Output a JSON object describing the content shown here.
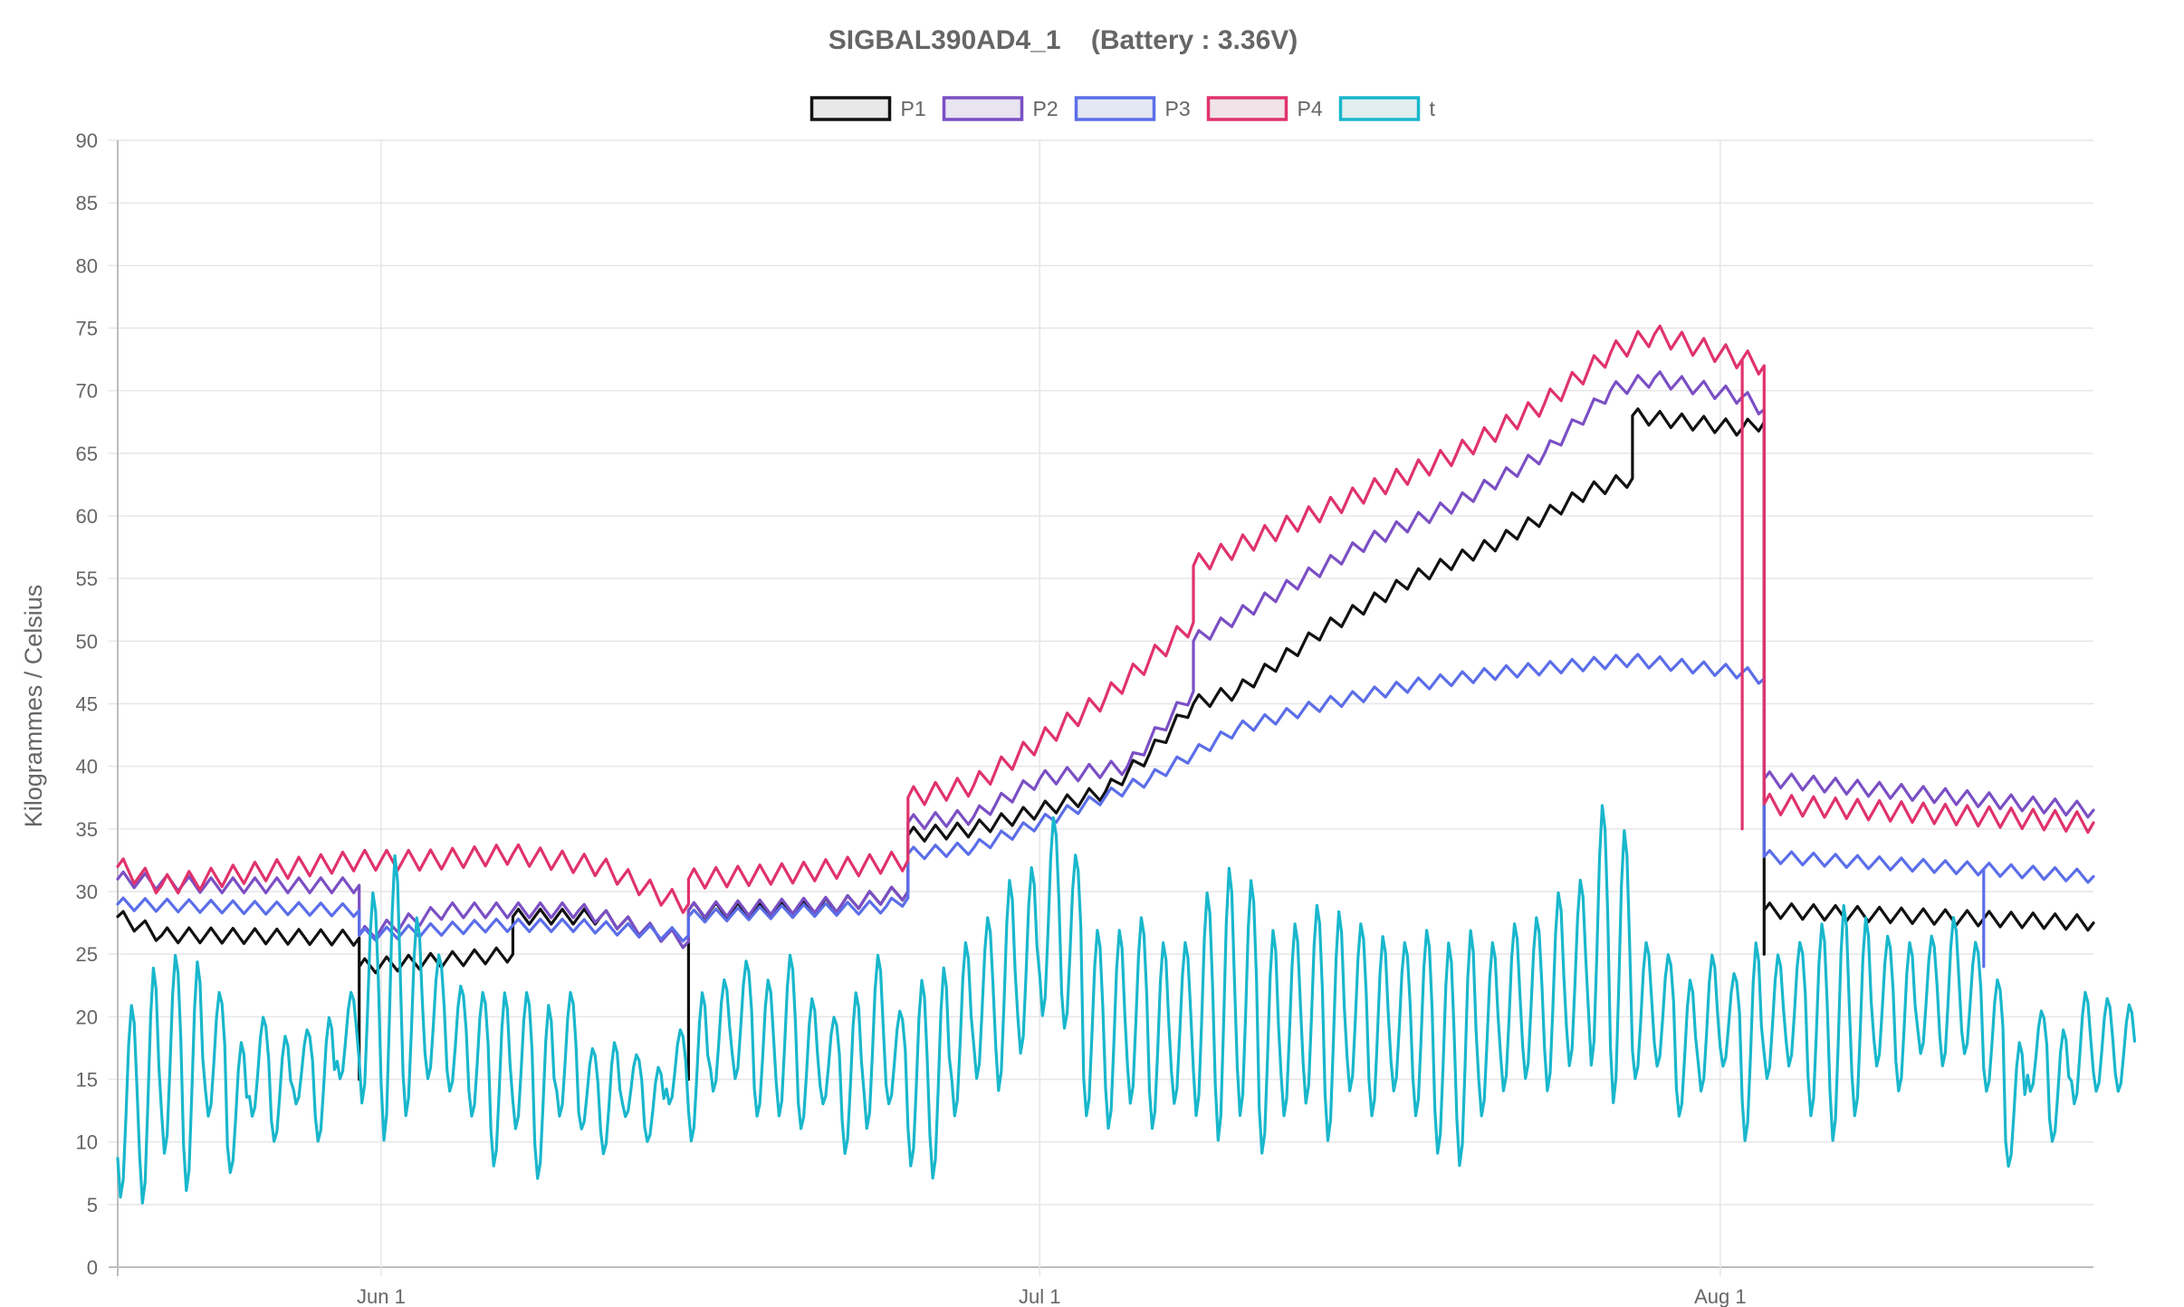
{
  "chart_data": {
    "type": "line",
    "title": "SIGBAL390AD4_1    (Battery : 3.36V)",
    "ylabel": "Kilogrammes  / Celsius",
    "xlabel": "",
    "ylim": [
      0,
      90
    ],
    "yticks": [
      0,
      5,
      10,
      15,
      20,
      25,
      30,
      35,
      40,
      45,
      50,
      55,
      60,
      65,
      70,
      75,
      80,
      85,
      90
    ],
    "xlim": [
      "2019-05-20",
      "2019-08-18"
    ],
    "xticks": [
      {
        "date": "2019-06-01",
        "label": "Jun 1"
      },
      {
        "date": "2019-07-01",
        "label": "Jul 1"
      },
      {
        "date": "2019-08-01",
        "label": "Aug 1"
      }
    ],
    "grid": true,
    "legend_position": "top",
    "series": [
      {
        "name": "P1",
        "color": "#111111",
        "fill": "#e8e8e8",
        "osc": 0.6,
        "points": [
          [
            "2019-05-20",
            28
          ],
          [
            "2019-05-22",
            26.5
          ],
          [
            "2019-05-24",
            26.5
          ],
          [
            "2019-05-31",
            26.3
          ],
          [
            "2019-05-31",
            15
          ],
          [
            "2019-05-31",
            24
          ],
          [
            "2019-06-07",
            25
          ],
          [
            "2019-06-07",
            28
          ],
          [
            "2019-06-11",
            28
          ],
          [
            "2019-06-14",
            26.5
          ],
          [
            "2019-06-15",
            26
          ],
          [
            "2019-06-15",
            15
          ],
          [
            "2019-06-15",
            28.5
          ],
          [
            "2019-06-19",
            28.5
          ],
          [
            "2019-06-22",
            29
          ],
          [
            "2019-06-25",
            30
          ],
          [
            "2019-06-25",
            34.5
          ],
          [
            "2019-06-28",
            35
          ],
          [
            "2019-07-01",
            36.5
          ],
          [
            "2019-07-04",
            38
          ],
          [
            "2019-07-06",
            41
          ],
          [
            "2019-07-08",
            45
          ],
          [
            "2019-07-10",
            46
          ],
          [
            "2019-07-14",
            51
          ],
          [
            "2019-07-18",
            55
          ],
          [
            "2019-07-22",
            58
          ],
          [
            "2019-07-26",
            62
          ],
          [
            "2019-07-28",
            63
          ],
          [
            "2019-07-28",
            68
          ],
          [
            "2019-08-02",
            67
          ],
          [
            "2019-08-03",
            67.5
          ],
          [
            "2019-08-03",
            25
          ],
          [
            "2019-08-03",
            28.5
          ],
          [
            "2019-08-18",
            27.5
          ]
        ]
      },
      {
        "name": "P2",
        "color": "#7b4fc4",
        "fill": "#e8e4f0",
        "osc": 0.6,
        "points": [
          [
            "2019-05-20",
            31
          ],
          [
            "2019-05-24",
            30.5
          ],
          [
            "2019-05-31",
            30.5
          ],
          [
            "2019-05-31",
            26.5
          ],
          [
            "2019-06-04",
            28.5
          ],
          [
            "2019-06-10",
            28.5
          ],
          [
            "2019-06-15",
            26
          ],
          [
            "2019-06-15",
            28.5
          ],
          [
            "2019-06-22",
            29
          ],
          [
            "2019-06-25",
            30
          ],
          [
            "2019-06-25",
            35.5
          ],
          [
            "2019-06-28",
            36
          ],
          [
            "2019-07-01",
            39
          ],
          [
            "2019-07-05",
            40
          ],
          [
            "2019-07-08",
            46
          ],
          [
            "2019-07-08",
            50
          ],
          [
            "2019-07-12",
            54
          ],
          [
            "2019-07-16",
            58
          ],
          [
            "2019-07-20",
            61
          ],
          [
            "2019-07-24",
            65
          ],
          [
            "2019-07-27",
            70
          ],
          [
            "2019-07-29",
            71
          ],
          [
            "2019-08-02",
            69.5
          ],
          [
            "2019-08-03",
            68.5
          ],
          [
            "2019-08-03",
            39
          ],
          [
            "2019-08-18",
            36.5
          ]
        ]
      },
      {
        "name": "P3",
        "color": "#5b6ee8",
        "fill": "#e4e8f2",
        "osc": 0.5,
        "points": [
          [
            "2019-05-20",
            29
          ],
          [
            "2019-05-31",
            28.5
          ],
          [
            "2019-05-31",
            26.5
          ],
          [
            "2019-06-06",
            27.3
          ],
          [
            "2019-06-10",
            27.3
          ],
          [
            "2019-06-15",
            26.5
          ],
          [
            "2019-06-15",
            28
          ],
          [
            "2019-06-24",
            28.8
          ],
          [
            "2019-06-25",
            29.5
          ],
          [
            "2019-06-25",
            33
          ],
          [
            "2019-06-28",
            33.5
          ],
          [
            "2019-07-01",
            35.5
          ],
          [
            "2019-07-06",
            39
          ],
          [
            "2019-07-10",
            43
          ],
          [
            "2019-07-14",
            45
          ],
          [
            "2019-07-18",
            46.5
          ],
          [
            "2019-07-22",
            47.5
          ],
          [
            "2019-07-28",
            48.5
          ],
          [
            "2019-08-02",
            47.5
          ],
          [
            "2019-08-03",
            47
          ],
          [
            "2019-08-03",
            32.8
          ],
          [
            "2019-08-13",
            31.8
          ],
          [
            "2019-08-13",
            24
          ],
          [
            "2019-08-13",
            31.8
          ],
          [
            "2019-08-18",
            31.2
          ]
        ]
      },
      {
        "name": "P4",
        "color": "#e0336b",
        "fill": "#f1e4e8",
        "osc": 0.8,
        "points": [
          [
            "2019-05-20",
            32
          ],
          [
            "2019-05-22",
            30.5
          ],
          [
            "2019-05-26",
            31.5
          ],
          [
            "2019-05-31",
            32.5
          ],
          [
            "2019-06-03",
            32.5
          ],
          [
            "2019-06-07",
            33
          ],
          [
            "2019-06-11",
            32
          ],
          [
            "2019-06-14",
            29.5
          ],
          [
            "2019-06-15",
            29
          ],
          [
            "2019-06-15",
            31
          ],
          [
            "2019-06-20",
            31.5
          ],
          [
            "2019-06-25",
            32.5
          ],
          [
            "2019-06-25",
            37.5
          ],
          [
            "2019-06-28",
            38.5
          ],
          [
            "2019-07-01",
            42
          ],
          [
            "2019-07-04",
            45.5
          ],
          [
            "2019-07-08",
            51.5
          ],
          [
            "2019-07-08",
            56
          ],
          [
            "2019-07-12",
            59
          ],
          [
            "2019-07-16",
            62
          ],
          [
            "2019-07-20",
            65
          ],
          [
            "2019-07-24",
            69
          ],
          [
            "2019-07-27",
            73
          ],
          [
            "2019-07-29",
            74.5
          ],
          [
            "2019-08-02",
            72.5
          ],
          [
            "2019-08-02",
            35
          ],
          [
            "2019-08-02",
            72.5
          ],
          [
            "2019-08-03",
            72
          ],
          [
            "2019-08-03",
            37
          ],
          [
            "2019-08-18",
            35.5
          ]
        ]
      },
      {
        "name": "t",
        "color": "#19b7cc",
        "fill": "#e2eef0",
        "daily_min_max": [
          [
            5.5,
            21
          ],
          [
            5,
            24
          ],
          [
            9,
            25
          ],
          [
            6,
            24.5
          ],
          [
            12,
            22
          ],
          [
            7.5,
            18
          ],
          [
            12,
            20
          ],
          [
            10,
            18.5
          ],
          [
            13,
            19
          ],
          [
            10,
            20
          ],
          [
            15,
            22
          ],
          [
            13,
            30
          ],
          [
            10,
            33
          ],
          [
            12,
            28
          ],
          [
            15,
            25
          ],
          [
            14,
            22.5
          ],
          [
            12,
            22
          ],
          [
            8,
            22
          ],
          [
            11,
            22
          ],
          [
            7,
            21
          ],
          [
            12,
            22
          ],
          [
            11,
            17.5
          ],
          [
            9,
            18
          ],
          [
            12,
            17
          ],
          [
            10,
            16
          ],
          [
            13,
            19
          ],
          [
            10,
            22
          ],
          [
            14,
            23
          ],
          [
            15,
            24.5
          ],
          [
            12,
            23
          ],
          [
            12,
            25
          ],
          [
            11,
            21.5
          ],
          [
            13,
            20
          ],
          [
            9,
            22
          ],
          [
            11,
            25
          ],
          [
            13,
            20.5
          ],
          [
            8,
            23
          ],
          [
            7,
            24
          ],
          [
            12,
            26
          ],
          [
            15,
            28
          ],
          [
            14,
            31
          ],
          [
            17,
            32
          ],
          [
            20,
            36
          ],
          [
            19,
            33
          ],
          [
            12,
            27
          ],
          [
            11,
            27
          ],
          [
            13,
            28
          ],
          [
            11,
            26
          ],
          [
            13,
            26
          ],
          [
            12,
            30
          ],
          [
            10,
            32
          ],
          [
            12,
            31
          ],
          [
            9,
            27
          ],
          [
            12,
            27.5
          ],
          [
            13,
            29
          ],
          [
            10,
            28.5
          ],
          [
            14,
            27.5
          ],
          [
            12,
            26.5
          ],
          [
            14,
            26
          ],
          [
            12,
            27
          ],
          [
            9,
            26
          ],
          [
            8,
            27
          ],
          [
            12,
            26
          ],
          [
            14,
            27.5
          ],
          [
            15,
            28
          ],
          [
            14,
            30
          ],
          [
            16,
            31
          ],
          [
            16,
            37
          ],
          [
            13,
            35
          ],
          [
            15,
            26
          ],
          [
            16,
            25
          ],
          [
            12,
            23
          ],
          [
            14,
            25
          ],
          [
            16,
            23.5
          ],
          [
            10,
            26
          ],
          [
            15,
            25
          ],
          [
            16,
            26
          ],
          [
            12,
            27.5
          ],
          [
            10,
            29
          ],
          [
            12,
            28
          ],
          [
            16,
            26.5
          ],
          [
            14,
            26
          ],
          [
            17,
            26.5
          ],
          [
            16,
            28
          ],
          [
            17,
            26
          ],
          [
            14,
            23
          ],
          [
            8,
            18
          ],
          [
            14,
            20.5
          ],
          [
            10,
            19
          ],
          [
            13,
            22
          ],
          [
            14,
            21.5
          ],
          [
            14,
            21
          ]
        ]
      }
    ]
  }
}
